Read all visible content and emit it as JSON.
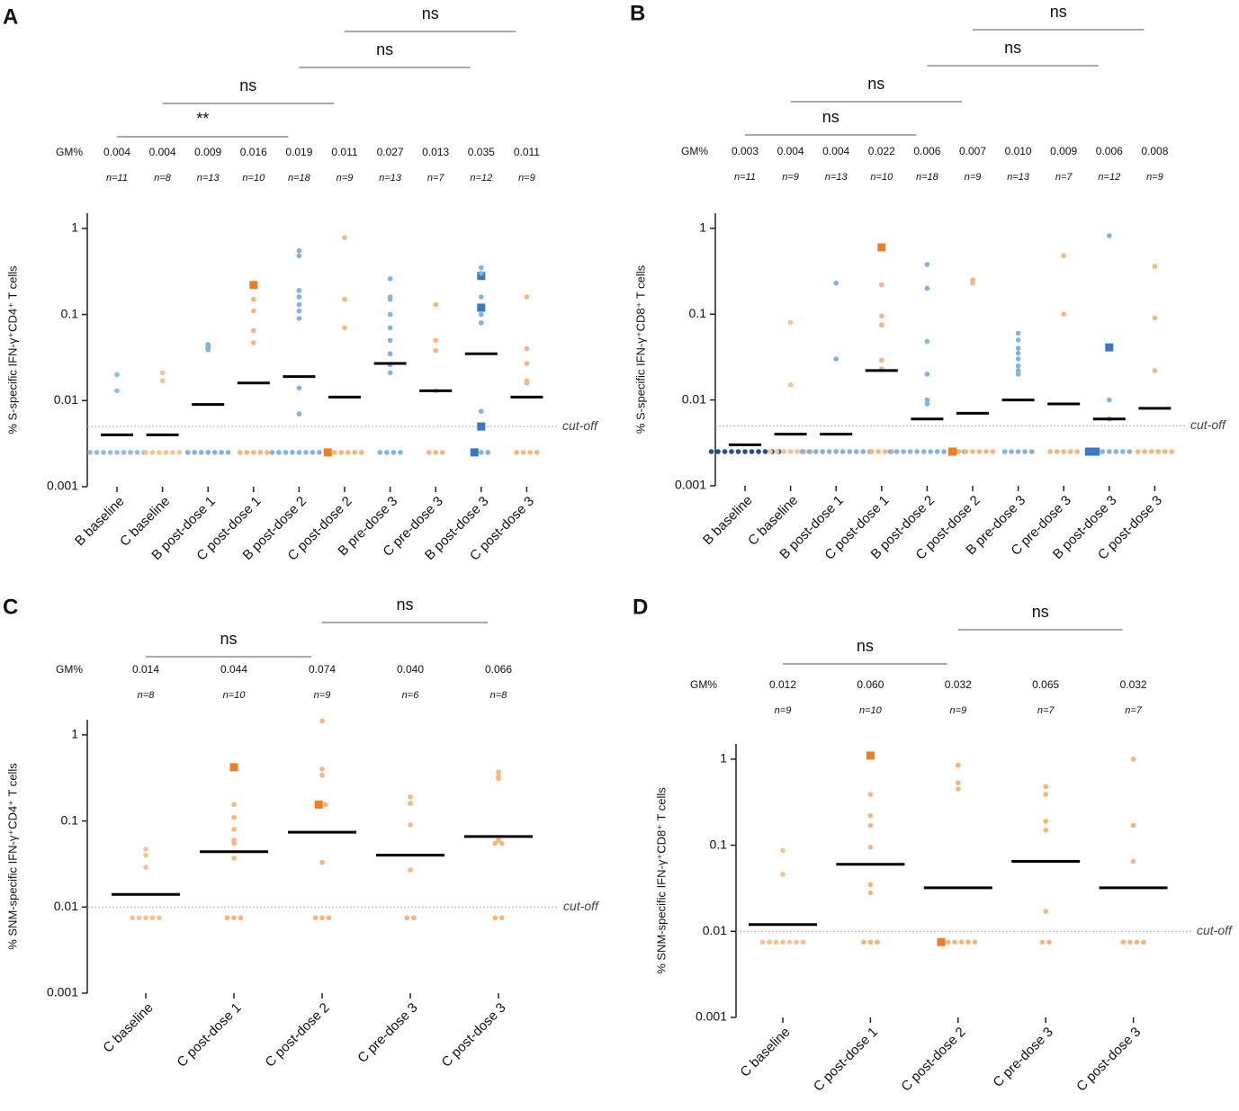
{
  "chart_data": [
    {
      "type": "dotplot",
      "panel": "A",
      "ylabel": "% S-specific IFN-γ⁺CD4⁺ T cells",
      "log": true,
      "ylim": [
        0.001,
        1.5
      ],
      "yticks": [
        0.001,
        0.01,
        0.1,
        1
      ],
      "cutoff": 0.005,
      "cutoff_label": "cut-off",
      "gm_label": "GM%",
      "categories": [
        "B baseline",
        "C baseline",
        "B post-dose 1",
        "C post-dose 1",
        "B post-dose 2",
        "C post-dose 2",
        "B pre-dose 3",
        "C pre-dose 3",
        "B post-dose 3",
        "C post-dose 3"
      ],
      "colors": [
        "#8fbbe6",
        "#f8c08c",
        "#7fb2e5",
        "#f7b57b",
        "#7fb2e5",
        "#f7b57b",
        "#7fb2e5",
        "#f7b57b",
        "#7fb2e5",
        "#f7b57b"
      ],
      "square_colors": [
        "#3a78c2",
        "#f07d22",
        "#3a78c2",
        "#f07d22",
        "#3a78c2",
        "#f07d22",
        "#3a78c2",
        "#f07d22",
        "#3a78c2",
        "#f07d22"
      ],
      "gm": [
        0.004,
        0.004,
        0.009,
        0.016,
        0.019,
        0.011,
        0.027,
        0.013,
        0.035,
        0.011
      ],
      "n_labels": [
        "n=11",
        "n=8",
        "n=13",
        "n=10",
        "n=18",
        "n=9",
        "n=13",
        "n=7",
        "n=12",
        "n=9"
      ],
      "points": [
        [
          0.02,
          0.013,
          0.0025,
          0.0025,
          0.0025,
          0.0025,
          0.0025,
          0.0025,
          0.0025,
          0.0025,
          0.0025
        ],
        [
          0.021,
          0.017,
          0.0025,
          0.0025,
          0.0025,
          0.0025,
          0.0025,
          0.0025
        ],
        [
          0.045,
          0.043,
          0.041,
          0.04,
          0.039,
          0.044,
          0.0025,
          0.0025,
          0.0025,
          0.0025,
          0.0025,
          0.0025,
          0.0025
        ],
        [
          0.15,
          0.11,
          0.065,
          0.047,
          0.0025,
          0.0025,
          0.0025,
          0.0025,
          0.0025
        ],
        [
          0.55,
          0.48,
          0.19,
          0.16,
          0.13,
          0.11,
          0.09,
          0.014,
          0.007,
          0.0025,
          0.0025,
          0.0025,
          0.0025,
          0.0025,
          0.0025,
          0.0025,
          0.0025,
          0.0025
        ],
        [
          0.78,
          0.15,
          0.07,
          0.0025,
          0.0025,
          0.0025,
          0.0025,
          0.0025
        ],
        [
          0.26,
          0.16,
          0.15,
          0.1,
          0.07,
          0.05,
          0.035,
          0.026,
          0.021,
          0.0025,
          0.0025,
          0.0025,
          0.0025
        ],
        [
          0.13,
          0.05,
          0.038,
          0.013,
          0.0025,
          0.0025,
          0.0025
        ],
        [
          0.35,
          0.3,
          0.16,
          0.1,
          0.08,
          0.0075,
          0.0025,
          0.0025
        ],
        [
          0.16,
          0.04,
          0.027,
          0.017,
          0.016,
          0.0025,
          0.0025,
          0.0025,
          0.0025
        ]
      ],
      "squares": [
        [],
        [],
        [],
        [
          0.22
        ],
        [],
        [
          0.0025
        ],
        [],
        [],
        [
          0.28,
          0.12,
          0.005,
          0.0025
        ],
        []
      ],
      "comparisons": [
        {
          "label": "**",
          "from": "B baseline",
          "to": "B post-dose 2"
        },
        {
          "label": "ns",
          "from": "C baseline",
          "to": "C post-dose 2"
        },
        {
          "label": "ns",
          "from": "B post-dose 2",
          "to": "B post-dose 3"
        },
        {
          "label": "ns",
          "from": "C post-dose 2",
          "to": "C post-dose 3"
        }
      ]
    },
    {
      "type": "dotplot",
      "panel": "B",
      "ylabel": "% S-specific IFN-γ⁺CD8⁺ T cells",
      "log": true,
      "ylim": [
        0.001,
        1.5
      ],
      "yticks": [
        0.001,
        0.01,
        0.1,
        1
      ],
      "cutoff": 0.005,
      "cutoff_label": "cut-off",
      "gm_label": "GM%",
      "categories": [
        "B baseline",
        "C baseline",
        "B post-dose 1",
        "C post-dose 1",
        "B post-dose 2",
        "C post-dose 2",
        "B pre-dose 3",
        "C pre-dose 3",
        "B post-dose 3",
        "C post-dose 3"
      ],
      "colors": [
        "#1f4f99",
        "#f8c08c",
        "#7fb2e5",
        "#f7b57b",
        "#7fb2e5",
        "#f7b57b",
        "#7fb2e5",
        "#f7b57b",
        "#7fb2e5",
        "#f7b57b"
      ],
      "square_colors": [
        "#3a78c2",
        "#f07d22",
        "#3a78c2",
        "#f07d22",
        "#3a78c2",
        "#f07d22",
        "#3a78c2",
        "#f07d22",
        "#3a78c2",
        "#f07d22"
      ],
      "gm": [
        0.003,
        0.004,
        0.004,
        0.022,
        0.006,
        0.007,
        0.01,
        0.009,
        0.006,
        0.008
      ],
      "gm_labels": [
        "0.003",
        "0.004",
        "0.004",
        "0.022",
        "0.006",
        "0.007",
        "0.010",
        "0.009",
        "0.006",
        "0.008"
      ],
      "n_labels": [
        "n=11",
        "n=9",
        "n=13",
        "n=10",
        "n=18",
        "n=9",
        "n=13",
        "n=7",
        "n=12",
        "n=9"
      ],
      "points": [
        [
          0.0025,
          0.0025,
          0.0025,
          0.0025,
          0.0025,
          0.0025,
          0.0025,
          0.0025,
          0.0025,
          0.0025,
          0.0025
        ],
        [
          0.08,
          0.015,
          0.0025,
          0.0025,
          0.0025,
          0.0025,
          0.0025,
          0.0025,
          0.0025
        ],
        [
          0.23,
          0.03,
          0.0025,
          0.0025,
          0.0025,
          0.0025,
          0.0025,
          0.0025,
          0.0025,
          0.0025,
          0.0025,
          0.0025,
          0.0025
        ],
        [
          0.22,
          0.095,
          0.075,
          0.029,
          0.023,
          0.0025,
          0.0025,
          0.0025,
          0.0025
        ],
        [
          0.38,
          0.2,
          0.048,
          0.02,
          0.01,
          0.009,
          0.0025,
          0.0025,
          0.0025,
          0.0025,
          0.0025,
          0.0025,
          0.0025,
          0.0025,
          0.0025,
          0.0025,
          0.0025,
          0.0025
        ],
        [
          0.25,
          0.23,
          0.0025,
          0.0025,
          0.0025,
          0.0025,
          0.0025,
          0.0025
        ],
        [
          0.06,
          0.05,
          0.04,
          0.035,
          0.03,
          0.025,
          0.022,
          0.02,
          0.0025,
          0.0025,
          0.0025,
          0.0025,
          0.0025
        ],
        [
          0.48,
          0.1,
          0.0025,
          0.0025,
          0.0025,
          0.0025,
          0.0025
        ],
        [
          0.82,
          0.01,
          0.006,
          0.0025,
          0.0025,
          0.0025,
          0.0025,
          0.0025
        ],
        [
          0.36,
          0.09,
          0.022,
          0.0025,
          0.0025,
          0.0025,
          0.0025,
          0.0025,
          0.0025
        ]
      ],
      "squares": [
        [],
        [],
        [],
        [
          0.6
        ],
        [],
        [
          0.0025
        ],
        [],
        [],
        [
          0.041,
          0.0025,
          0.0025
        ],
        []
      ],
      "comparisons": [
        {
          "label": "ns",
          "from": "B baseline",
          "to": "B post-dose 2"
        },
        {
          "label": "ns",
          "from": "C baseline",
          "to": "C post-dose 2"
        },
        {
          "label": "ns",
          "from": "B post-dose 2",
          "to": "B post-dose 3"
        },
        {
          "label": "ns",
          "from": "C post-dose 2",
          "to": "C post-dose 3"
        }
      ]
    },
    {
      "type": "dotplot",
      "panel": "C",
      "ylabel": "% SNM-specific IFN-γ⁺CD4⁺ T cells",
      "log": true,
      "ylim": [
        0.001,
        1.5
      ],
      "yticks": [
        0.001,
        0.01,
        0.1,
        1
      ],
      "cutoff": 0.01,
      "cutoff_label": "cut-off",
      "gm_label": "GM%",
      "categories": [
        "C baseline",
        "C post-dose 1",
        "C post-dose 2",
        "C pre-dose 3",
        "C post-dose 3"
      ],
      "colors": [
        "#f8c08c",
        "#f7b57b",
        "#f7b57b",
        "#f7b57b",
        "#f7b57b"
      ],
      "square_colors": [
        "#f07d22",
        "#f07d22",
        "#f07d22",
        "#f07d22",
        "#f07d22"
      ],
      "gm": [
        0.014,
        0.044,
        0.074,
        0.04,
        0.066
      ],
      "gm_labels": [
        "0.014",
        "0.044",
        "0.074",
        "0.040",
        "0.066"
      ],
      "n_labels": [
        "n=8",
        "n=10",
        "n=9",
        "n=6",
        "n=8"
      ],
      "points": [
        [
          0.047,
          0.04,
          0.029,
          0.0075,
          0.0075,
          0.0075,
          0.0075,
          0.0075
        ],
        [
          0.155,
          0.11,
          0.08,
          0.06,
          0.055,
          0.037,
          0.0075,
          0.0075,
          0.0075
        ],
        [
          1.45,
          0.4,
          0.34,
          0.155,
          0.033,
          0.0075,
          0.0075,
          0.0075
        ],
        [
          0.19,
          0.16,
          0.09,
          0.027,
          0.0075,
          0.0075
        ],
        [
          0.37,
          0.33,
          0.31,
          0.06,
          0.055,
          0.055,
          0.0075,
          0.0075
        ]
      ],
      "squares": [
        [],
        [
          0.42
        ],
        [
          0.155
        ],
        [],
        []
      ],
      "comparisons": [
        {
          "label": "ns",
          "from": "C baseline",
          "to": "C post-dose 2"
        },
        {
          "label": "ns",
          "from": "C post-dose 2",
          "to": "C post-dose 3"
        }
      ]
    },
    {
      "type": "dotplot",
      "panel": "D",
      "ylabel": "% SNM-specific IFN-γ⁺CD8⁺ T cells",
      "log": true,
      "ylim": [
        0.001,
        1.5
      ],
      "yticks": [
        0.001,
        0.01,
        0.1,
        1
      ],
      "cutoff": 0.01,
      "cutoff_label": "cut-off",
      "gm_label": "GM%",
      "categories": [
        "C baseline",
        "C post-dose 1",
        "C post-dose 2",
        "C pre-dose 3",
        "C post-dose 3"
      ],
      "colors": [
        "#f8c08c",
        "#f7b57b",
        "#f7b57b",
        "#f7b57b",
        "#f7b57b"
      ],
      "square_colors": [
        "#f07d22",
        "#f07d22",
        "#f07d22",
        "#f07d22",
        "#f07d22"
      ],
      "gm": [
        0.012,
        0.06,
        0.032,
        0.065,
        0.032
      ],
      "gm_labels": [
        "0.012",
        "0.060",
        "0.032",
        "0.065",
        "0.032"
      ],
      "n_labels": [
        "n=9",
        "n=10",
        "n=9",
        "n=7",
        "n=7"
      ],
      "points": [
        [
          0.087,
          0.046,
          0.0075,
          0.0075,
          0.0075,
          0.0075,
          0.0075,
          0.0075,
          0.0075
        ],
        [
          0.39,
          0.22,
          0.17,
          0.095,
          0.035,
          0.028,
          0.0075,
          0.0075,
          0.0075
        ],
        [
          0.85,
          0.53,
          0.45,
          0.0075,
          0.0075,
          0.0075,
          0.0075,
          0.0075
        ],
        [
          0.48,
          0.39,
          0.19,
          0.15,
          0.017,
          0.0075,
          0.0075
        ],
        [
          1.0,
          0.17,
          0.065,
          0.0075,
          0.0075,
          0.0075,
          0.0075
        ]
      ],
      "squares": [
        [],
        [
          1.1
        ],
        [
          0.0075
        ],
        [],
        []
      ],
      "comparisons": [
        {
          "label": "ns",
          "from": "C baseline",
          "to": "C post-dose 2"
        },
        {
          "label": "ns",
          "from": "C post-dose 2",
          "to": "C post-dose 3"
        }
      ]
    }
  ]
}
